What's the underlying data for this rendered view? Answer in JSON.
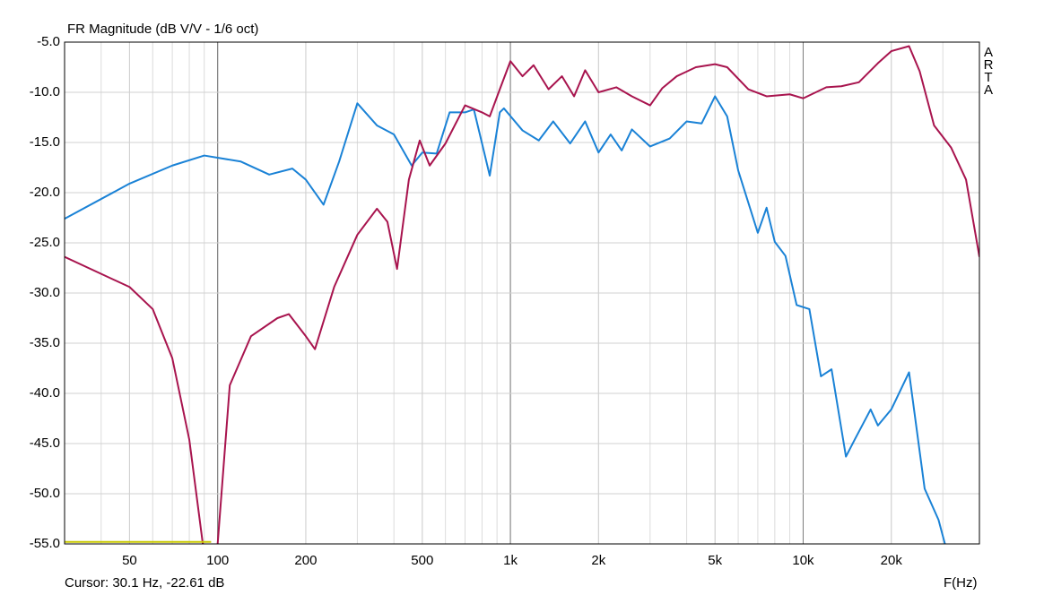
{
  "chart_data": {
    "type": "line",
    "title": "FR Magnitude (dB V/V - 1/6 oct)",
    "x_label": "F(Hz)",
    "cursor": "Cursor: 30.1 Hz, -22.61 dB",
    "watermark": "ARTA",
    "xscale": "log",
    "grid": true,
    "xlim": [
      30,
      40000
    ],
    "ylim": [
      -55,
      -5
    ],
    "xticks": [
      50,
      100,
      200,
      500,
      {
        "value": 1000,
        "label": "1k"
      },
      {
        "value": 2000,
        "label": "2k"
      },
      {
        "value": 5000,
        "label": "5k"
      },
      {
        "value": 10000,
        "label": "10k"
      },
      {
        "value": 20000,
        "label": "20k"
      }
    ],
    "yticks": [
      {
        "value": -5,
        "label": "-5.0"
      },
      {
        "value": -10,
        "label": "-10.0"
      },
      {
        "value": -15,
        "label": "-15.0"
      },
      {
        "value": -20,
        "label": "-20.0"
      },
      {
        "value": -25,
        "label": "-25.0"
      },
      {
        "value": -30,
        "label": "-30.0"
      },
      {
        "value": -35,
        "label": "-35.0"
      },
      {
        "value": -40,
        "label": "-40.0"
      },
      {
        "value": -45,
        "label": "-45.0"
      },
      {
        "value": -50,
        "label": "-50.0"
      },
      {
        "value": -55,
        "label": "-55.0"
      }
    ],
    "series": [
      {
        "color": "#1a82d6",
        "x": [
          30,
          50,
          70,
          90,
          120,
          150,
          180,
          200,
          230,
          260,
          300,
          350,
          400,
          460,
          500,
          560,
          620,
          700,
          750,
          800,
          850,
          920,
          950,
          1100,
          1250,
          1400,
          1600,
          1800,
          2000,
          2200,
          2400,
          2600,
          3000,
          3500,
          4000,
          4500,
          5000,
          5500,
          6000,
          7000,
          7500,
          8000,
          8700,
          9500,
          10500,
          11500,
          12500,
          14000,
          15000,
          17000,
          18000,
          20000,
          23000,
          26000,
          29000,
          30500
        ],
        "values": [
          -22.6,
          -19.1,
          -17.3,
          -16.3,
          -16.9,
          -18.2,
          -17.6,
          -18.7,
          -21.2,
          -16.9,
          -11.1,
          -13.3,
          -14.2,
          -17.3,
          -16.0,
          -16.1,
          -12.0,
          -12.0,
          -11.7,
          -15.1,
          -18.3,
          -12.0,
          -11.6,
          -13.8,
          -14.8,
          -12.9,
          -15.1,
          -12.9,
          -16.0,
          -14.2,
          -15.8,
          -13.7,
          -15.4,
          -14.6,
          -12.9,
          -13.1,
          -10.4,
          -12.4,
          -17.8,
          -24.0,
          -21.5,
          -24.9,
          -26.3,
          -31.2,
          -31.6,
          -38.3,
          -37.6,
          -46.3,
          -44.6,
          -41.6,
          -43.2,
          -41.6,
          -37.9,
          -49.5,
          -52.6,
          -55.0
        ]
      },
      {
        "color": "#a8144e",
        "x": [
          30,
          50,
          60,
          70,
          80,
          89,
          95,
          100,
          110,
          130,
          160,
          175,
          200,
          215,
          250,
          300,
          350,
          380,
          410,
          450,
          490,
          530,
          600,
          700,
          800,
          850,
          920,
          1000,
          1100,
          1200,
          1350,
          1500,
          1650,
          1800,
          2000,
          2300,
          2600,
          3000,
          3300,
          3700,
          4300,
          5000,
          5500,
          6500,
          7500,
          9000,
          10000,
          12000,
          13500,
          15500,
          18000,
          20000,
          23000,
          25000,
          28000,
          32000,
          36000,
          40000
        ],
        "values": [
          -26.4,
          -29.4,
          -31.6,
          -36.5,
          -44.6,
          -55.0,
          null,
          -55.0,
          -39.2,
          -34.3,
          -32.5,
          -32.1,
          -34.3,
          -35.6,
          -29.4,
          -24.2,
          -21.6,
          -22.9,
          -27.6,
          -18.7,
          -14.8,
          -17.3,
          -15.1,
          -11.3,
          -12.0,
          -12.4,
          -9.7,
          -6.9,
          -8.4,
          -7.3,
          -9.7,
          -8.4,
          -10.4,
          -7.8,
          -10.0,
          -9.5,
          -10.4,
          -11.3,
          -9.6,
          -8.4,
          -7.5,
          -7.2,
          -7.5,
          -9.7,
          -10.4,
          -10.2,
          -10.6,
          -9.5,
          -9.4,
          -9.0,
          -7.1,
          -5.9,
          -5.4,
          -7.9,
          -13.3,
          -15.5,
          -18.7,
          -26.4
        ]
      },
      {
        "color": "#c8c800",
        "x": [
          30,
          95
        ],
        "values": [
          -54.8,
          -54.8
        ]
      }
    ]
  }
}
